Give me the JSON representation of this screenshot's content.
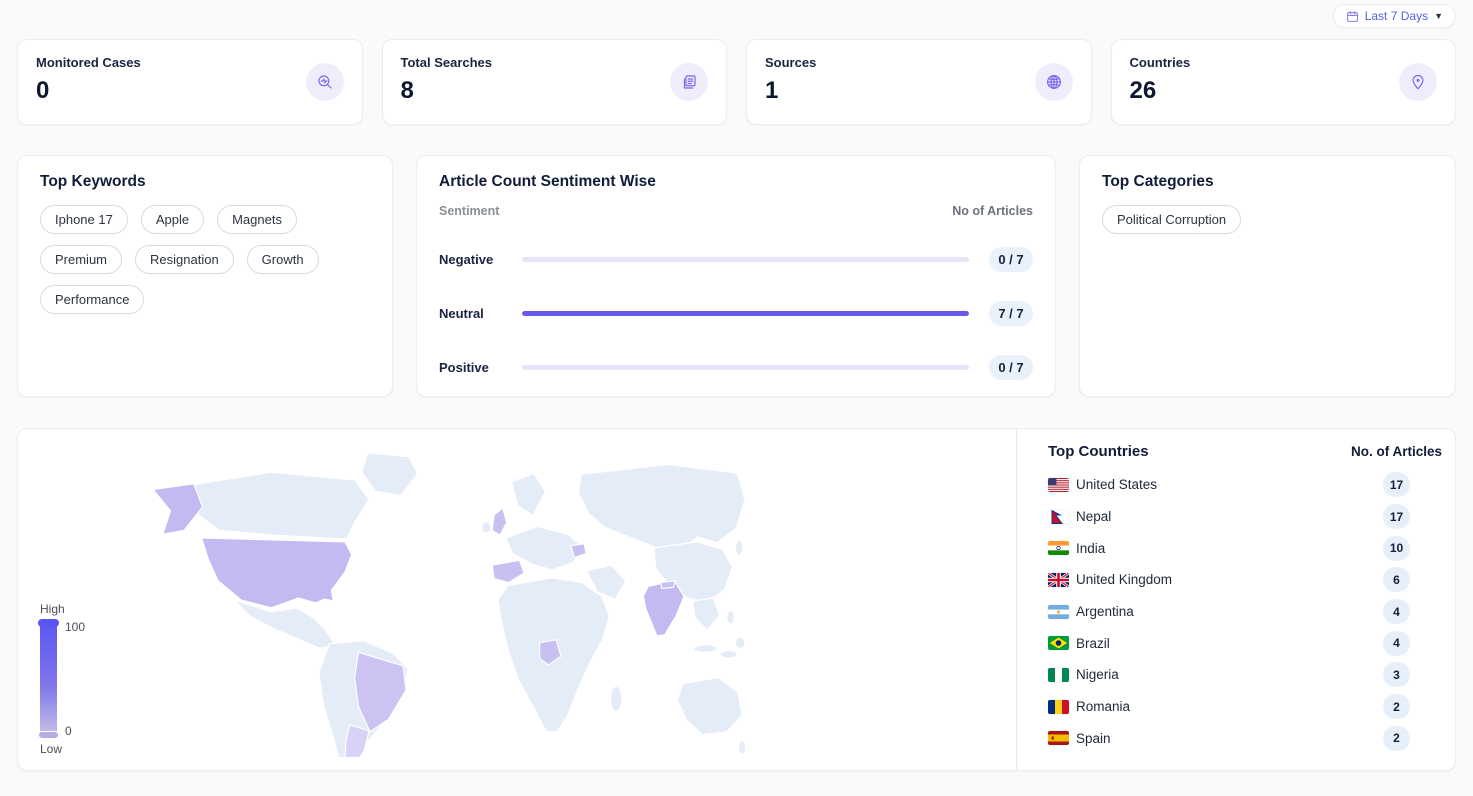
{
  "topbar": {
    "date_filter_label": "Last 7 Days"
  },
  "stats": [
    {
      "label": "Monitored Cases",
      "value": "0",
      "icon": "case-monitor-icon"
    },
    {
      "label": "Total Searches",
      "value": "8",
      "icon": "articles-icon"
    },
    {
      "label": "Sources",
      "value": "1",
      "icon": "globe-icon"
    },
    {
      "label": "Countries",
      "value": "26",
      "icon": "map-pin-icon"
    }
  ],
  "top_keywords": {
    "title": "Top Keywords",
    "keywords": [
      "Iphone 17",
      "Apple",
      "Magnets",
      "Premium",
      "Resignation",
      "Growth",
      "Performance"
    ]
  },
  "sentiment": {
    "title": "Article Count Sentiment Wise",
    "col_label": "Sentiment",
    "col_value": "No of Articles",
    "total": 7,
    "rows": [
      {
        "label": "Negative",
        "count": 0,
        "display": "0 / 7"
      },
      {
        "label": "Neutral",
        "count": 7,
        "display": "7 / 7"
      },
      {
        "label": "Positive",
        "count": 0,
        "display": "0 / 7"
      }
    ]
  },
  "top_categories": {
    "title": "Top Categories",
    "categories": [
      "Political Corruption"
    ]
  },
  "map": {
    "legend": {
      "high": "High",
      "low": "Low",
      "max": "100",
      "min": "0"
    }
  },
  "top_countries": {
    "title": "Top Countries",
    "col_value": "No. of Articles",
    "rows": [
      {
        "name": "United States",
        "count": "17",
        "flag": "us"
      },
      {
        "name": "Nepal",
        "count": "17",
        "flag": "np"
      },
      {
        "name": "India",
        "count": "10",
        "flag": "in"
      },
      {
        "name": "United Kingdom",
        "count": "6",
        "flag": "gb"
      },
      {
        "name": "Argentina",
        "count": "4",
        "flag": "ar"
      },
      {
        "name": "Brazil",
        "count": "4",
        "flag": "br"
      },
      {
        "name": "Nigeria",
        "count": "3",
        "flag": "ng"
      },
      {
        "name": "Romania",
        "count": "2",
        "flag": "ro"
      },
      {
        "name": "Spain",
        "count": "2",
        "flag": "es"
      }
    ]
  },
  "colors": {
    "accent_purple": "#6859e8",
    "bar_track": "#e7e4f8",
    "icon_purple": "#7b6af0",
    "icon_bubble_bg": "#efecfc",
    "badge_bg": "#e9f1fb",
    "map_base": "#e4ecf8",
    "map_high": "#c4baf1",
    "map_mid": "#ccc3f2",
    "map_low": "#d8d2f6",
    "legend_top": "#5a55f2",
    "legend_bottom": "#c9c4ec",
    "link_blue": "#4f63e8"
  }
}
